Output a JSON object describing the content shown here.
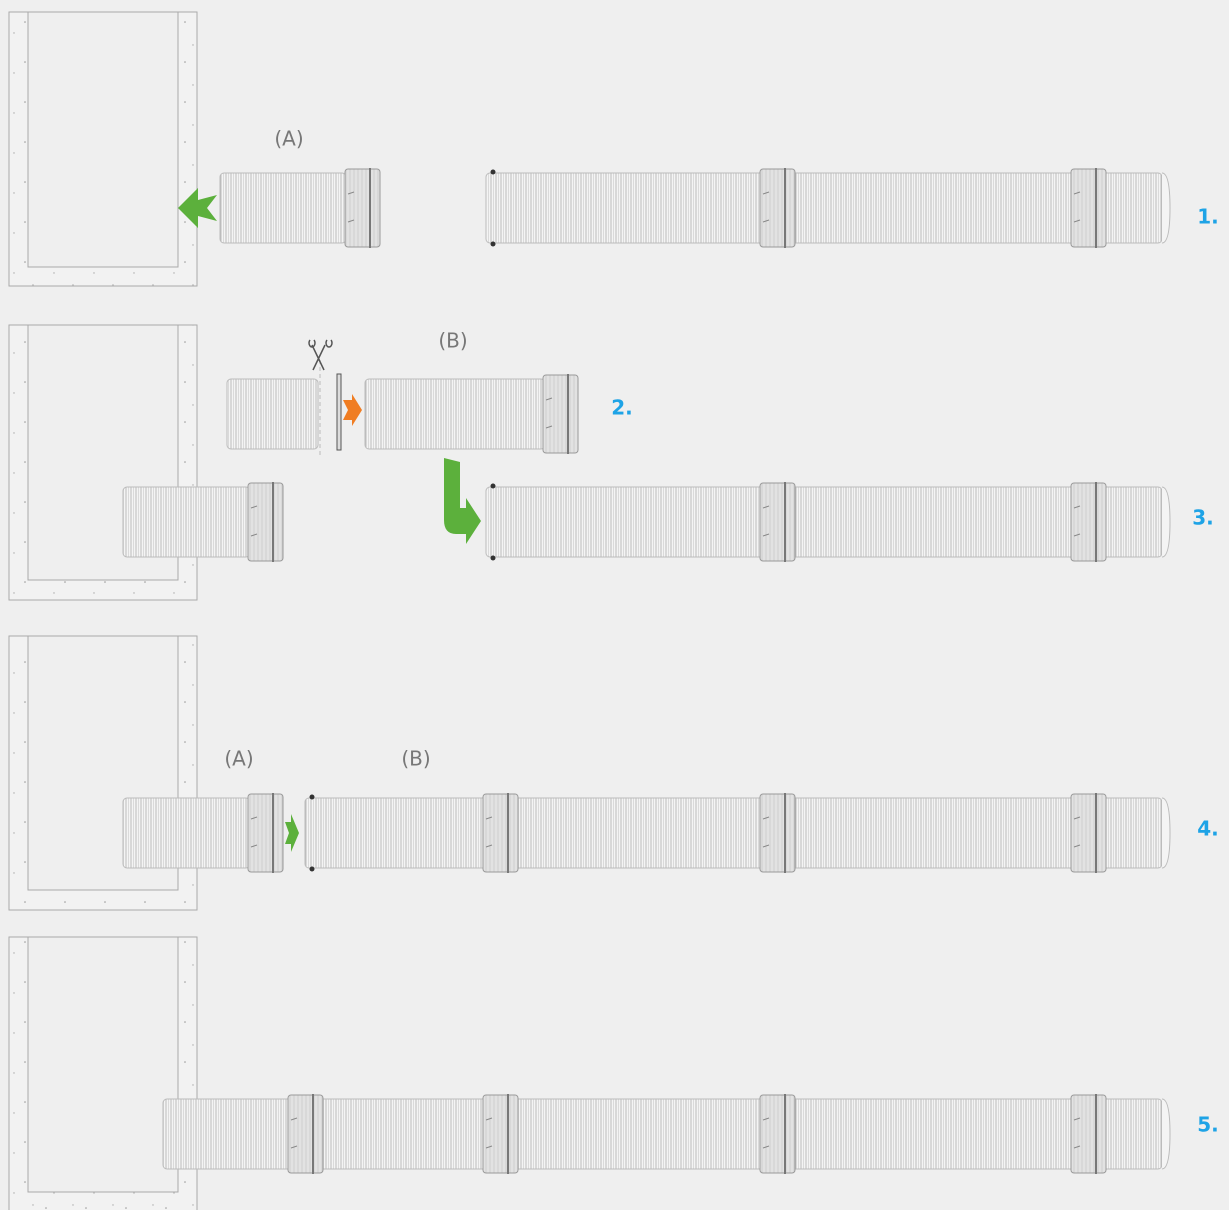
{
  "steps": [
    {
      "number": "1.",
      "labels": [
        "(A)"
      ]
    },
    {
      "number": "2.",
      "labels": [
        "(B)"
      ]
    },
    {
      "number": "3."
    },
    {
      "number": "4.",
      "labels": [
        "(A)",
        "(B)"
      ]
    },
    {
      "number": "5."
    }
  ]
}
